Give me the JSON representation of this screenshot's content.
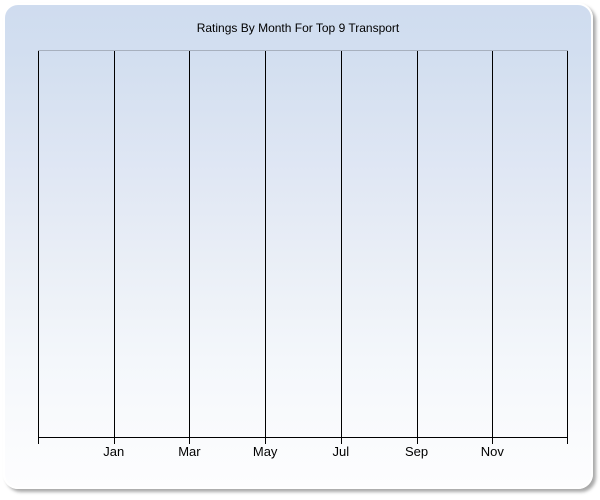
{
  "chart": {
    "colors": {
      "page_background": "#ffffff",
      "widget_border": "#ffffff",
      "widget_gradient_top": "#cfdcef",
      "widget_gradient_bottom": "#fdfdfe",
      "plot_top_border": "#a7b0be",
      "gridline": "#000000",
      "axis_line": "#000000",
      "text": "#000000",
      "drop_shadow": "#a9a9a9"
    }
  },
  "chart_data": {
    "type": "line",
    "title": "Ratings By Month For Top 9 Transport",
    "xlabel": "",
    "ylabel": "",
    "x_tick_labels": [
      "Jan",
      "Mar",
      "May",
      "Jul",
      "Sep",
      "Nov"
    ],
    "y_tick_labels": [],
    "series": [],
    "x_gridline_count": 8,
    "gridlines": "vertical-only",
    "legend": "none"
  }
}
